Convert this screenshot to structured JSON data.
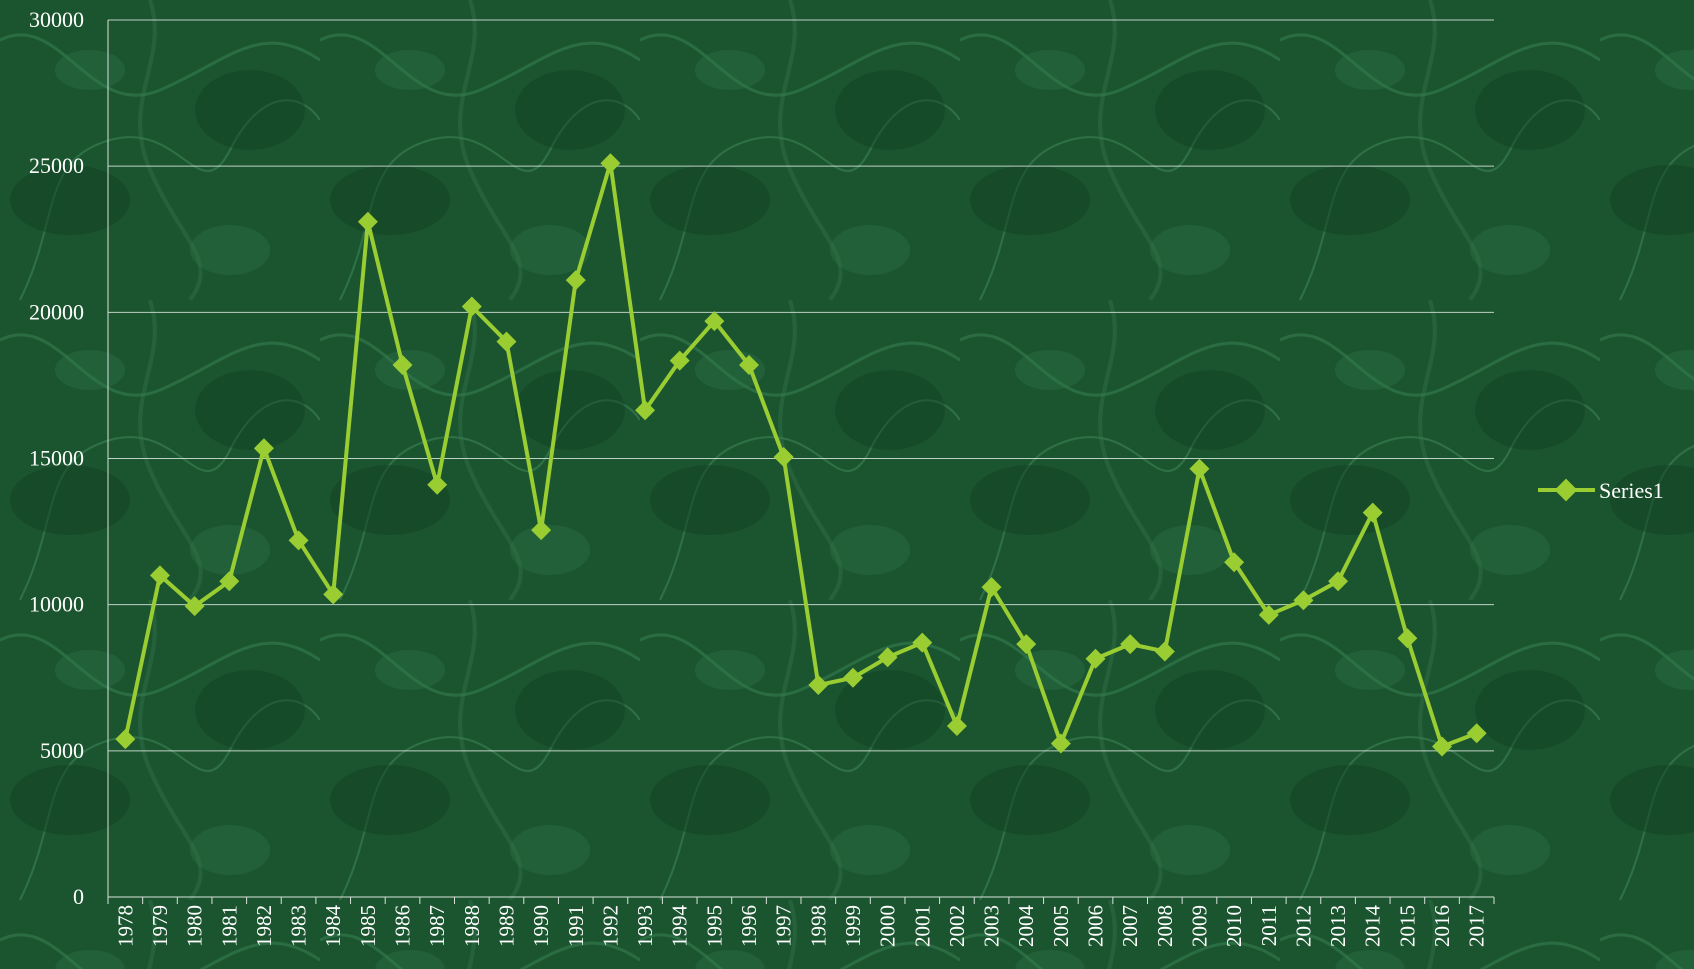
{
  "chart_data": {
    "type": "line",
    "title": "",
    "xlabel": "",
    "ylabel": "",
    "ylim": [
      0,
      30000
    ],
    "yticks": [
      0,
      5000,
      10000,
      15000,
      20000,
      25000,
      30000
    ],
    "grid": "horizontal",
    "legend_position": "right",
    "categories": [
      "1978",
      "1979",
      "1980",
      "1981",
      "1982",
      "1983",
      "1984",
      "1985",
      "1986",
      "1987",
      "1988",
      "1989",
      "1990",
      "1991",
      "1992",
      "1993",
      "1994",
      "1995",
      "1996",
      "1997",
      "1998",
      "1999",
      "2000",
      "2001",
      "2002",
      "2003",
      "2004",
      "2005",
      "2006",
      "2007",
      "2008",
      "2009",
      "2010",
      "2011",
      "2012",
      "2013",
      "2014",
      "2015",
      "2016",
      "2017"
    ],
    "series": [
      {
        "name": "Series1",
        "color": "#9acd32",
        "values": [
          5400,
          11000,
          9950,
          10800,
          15350,
          12200,
          10350,
          23100,
          18200,
          14100,
          20200,
          19000,
          12550,
          21100,
          25100,
          16650,
          18350,
          19700,
          18200,
          15050,
          7250,
          7500,
          8200,
          8700,
          5850,
          10600,
          8650,
          5250,
          8150,
          8650,
          8400,
          14650,
          11450,
          9650,
          10150,
          10800,
          13150,
          8850,
          5150,
          5600
        ]
      }
    ]
  }
}
